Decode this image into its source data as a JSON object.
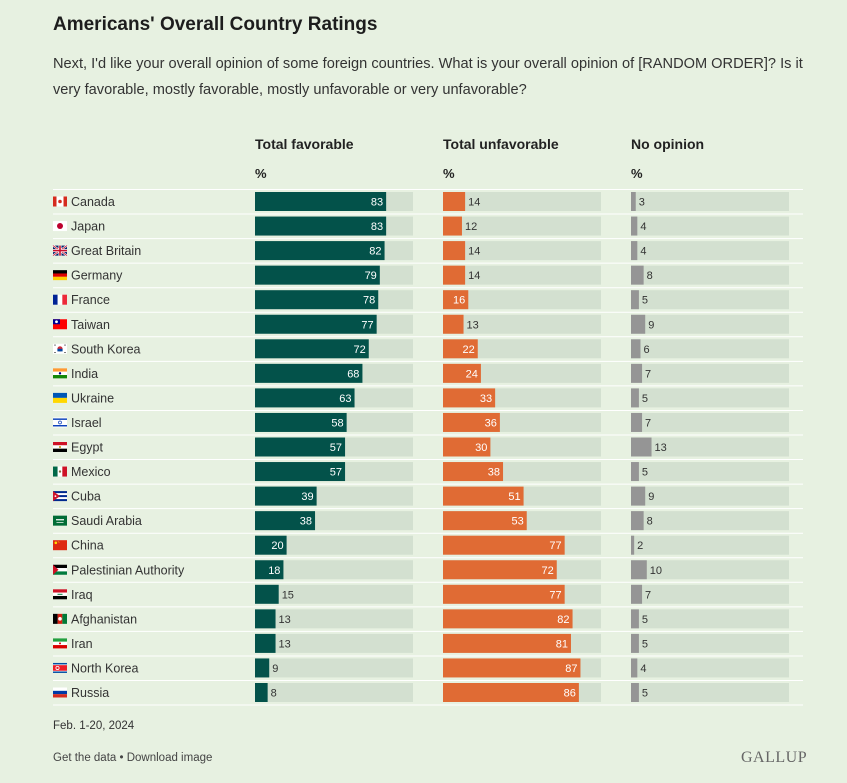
{
  "header": {
    "title": "Americans' Overall Country Ratings",
    "subtitle": "Next, I'd like your overall opinion of some foreign countries. What is your overall opinion of [RANDOM ORDER]? Is it very favorable, mostly favorable, mostly unfavorable or very unfavorable?"
  },
  "columns": [
    {
      "label": "Total favorable",
      "unit": "%"
    },
    {
      "label": "Total unfavorable",
      "unit": "%"
    },
    {
      "label": "No opinion",
      "unit": "%"
    }
  ],
  "colors": {
    "favorable": "#03524a",
    "unfavorable": "#e06b34",
    "no_opinion": "#959595",
    "track": "#d3e0d0"
  },
  "chart_data": {
    "type": "bar",
    "categories": [
      "Canada",
      "Japan",
      "Great Britain",
      "Germany",
      "France",
      "Taiwan",
      "South Korea",
      "India",
      "Ukraine",
      "Israel",
      "Egypt",
      "Mexico",
      "Cuba",
      "Saudi Arabia",
      "China",
      "Palestinian Authority",
      "Iraq",
      "Afghanistan",
      "Iran",
      "North Korea",
      "Russia"
    ],
    "flag_icons": [
      "canada-flag-icon",
      "japan-flag-icon",
      "great-britain-flag-icon",
      "germany-flag-icon",
      "france-flag-icon",
      "taiwan-flag-icon",
      "south-korea-flag-icon",
      "india-flag-icon",
      "ukraine-flag-icon",
      "israel-flag-icon",
      "egypt-flag-icon",
      "mexico-flag-icon",
      "cuba-flag-icon",
      "saudi-arabia-flag-icon",
      "china-flag-icon",
      "palestine-flag-icon",
      "iraq-flag-icon",
      "afghanistan-flag-icon",
      "iran-flag-icon",
      "north-korea-flag-icon",
      "russia-flag-icon"
    ],
    "series": [
      {
        "name": "Total favorable",
        "values": [
          83,
          83,
          82,
          79,
          78,
          77,
          72,
          68,
          63,
          58,
          57,
          57,
          39,
          38,
          20,
          18,
          15,
          13,
          13,
          9,
          8
        ]
      },
      {
        "name": "Total unfavorable",
        "values": [
          14,
          12,
          14,
          14,
          16,
          13,
          22,
          24,
          33,
          36,
          30,
          38,
          51,
          53,
          77,
          72,
          77,
          82,
          81,
          87,
          86
        ]
      },
      {
        "name": "No opinion",
        "values": [
          3,
          4,
          4,
          8,
          5,
          9,
          6,
          7,
          5,
          7,
          13,
          5,
          9,
          8,
          2,
          10,
          7,
          5,
          5,
          4,
          5
        ]
      }
    ],
    "ylim": [
      0,
      100
    ]
  },
  "footer": {
    "date": "Feb. 1-20, 2024",
    "get_data": "Get the data",
    "separator": " • ",
    "download": "Download image",
    "brand": "GALLUP"
  }
}
